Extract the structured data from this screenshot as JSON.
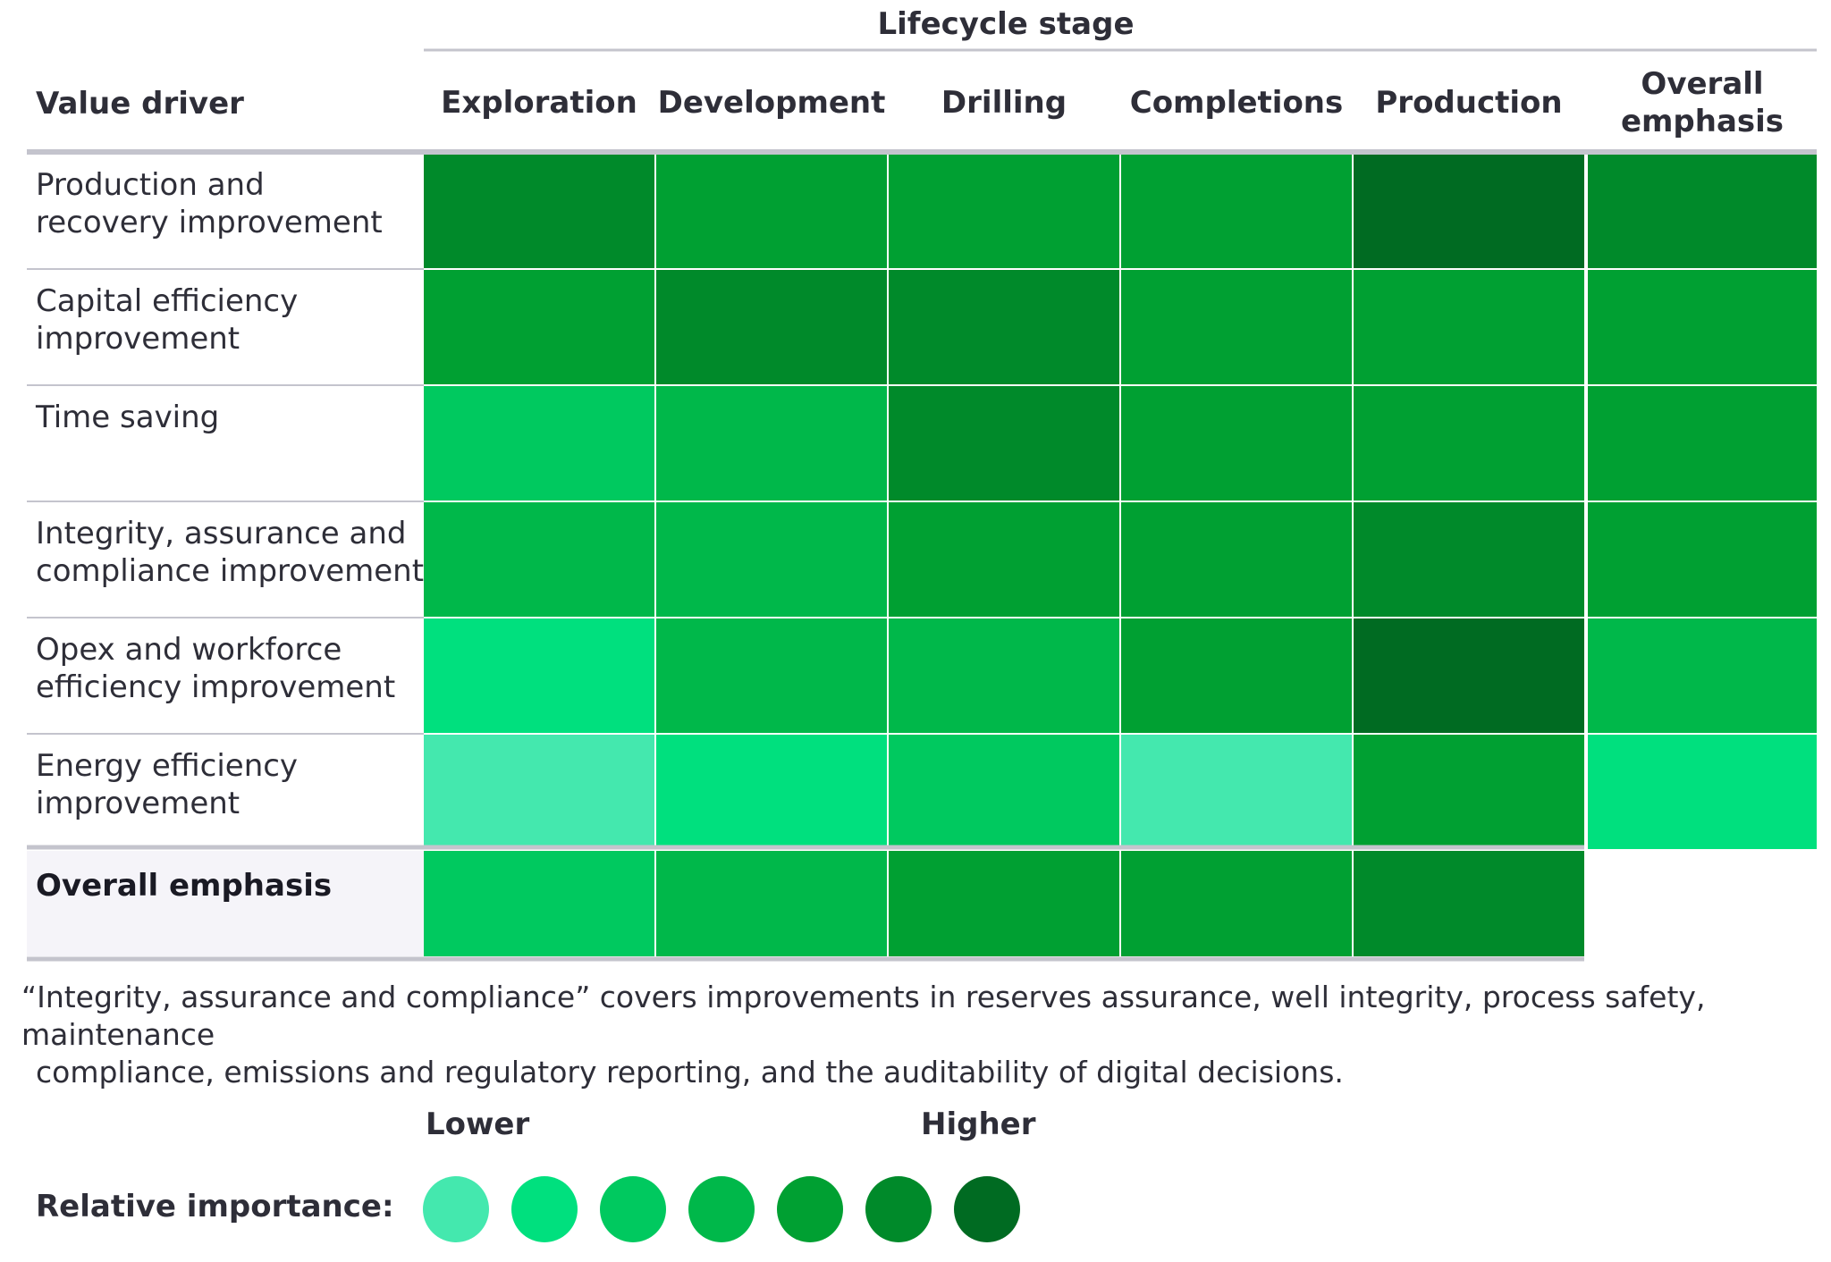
{
  "chart_data": {
    "type": "heatmap",
    "column_group_label": "Lifecycle stage",
    "row_header": "Value driver",
    "columns": [
      "Exploration",
      "Development",
      "Drilling",
      "Completions",
      "Production"
    ],
    "overall_column_label": [
      "Overall",
      "emphasis"
    ],
    "rows": [
      {
        "label": [
          "Production and",
          "recovery improvement"
        ],
        "values": [
          6,
          5,
          5,
          5,
          7
        ],
        "overall": 6
      },
      {
        "label": [
          "Capital efficiency",
          "improvement"
        ],
        "values": [
          5,
          6,
          6,
          5,
          5
        ],
        "overall": 5
      },
      {
        "label": [
          "Time saving"
        ],
        "values": [
          3,
          4,
          6,
          5,
          5
        ],
        "overall": 5
      },
      {
        "label": [
          "Integrity, assurance and",
          "compliance improvement"
        ],
        "values": [
          4,
          4,
          5,
          5,
          6
        ],
        "overall": 5
      },
      {
        "label": [
          "Opex and workforce",
          "efficiency improvement"
        ],
        "values": [
          2,
          4,
          4,
          5,
          7
        ],
        "overall": 4
      },
      {
        "label": [
          "Energy efficiency",
          "improvement"
        ],
        "values": [
          1,
          2,
          3,
          1,
          5
        ],
        "overall": 2
      }
    ],
    "overall_row": {
      "label": "Overall emphasis",
      "values": [
        3,
        4,
        5,
        5,
        6
      ]
    },
    "scale": {
      "title": "Relative importance:",
      "low_label": "Lower",
      "high_label": "Higher",
      "levels": [
        1,
        2,
        3,
        4,
        5,
        6,
        7
      ],
      "colors": [
        "#44e8ae",
        "#00e07e",
        "#00c95f",
        "#00b84a",
        "#00a032",
        "#008a2a",
        "#006b22"
      ]
    }
  },
  "note": {
    "line1": "“Integrity, assurance and compliance” covers improvements in reserves assurance, well integrity, process safety, maintenance",
    "line2": "compliance, emissions and regulatory reporting, and the auditability of digital decisions."
  }
}
